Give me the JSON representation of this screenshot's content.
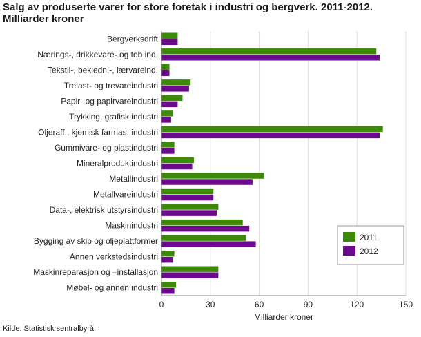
{
  "title_line1": "Salg av produserte varer for store foretak i industri og bergverk. 2011-2012.",
  "title_line2": "Milliarder kroner",
  "source": "Kilde: Statistisk sentralbyrå.",
  "colors": {
    "2011": "#3c8a07",
    "2012": "#6b0a8a",
    "grid": "#dddddd",
    "axis": "#888888"
  },
  "chart_data": {
    "type": "bar",
    "orientation": "horizontal",
    "title": "Salg av produserte varer for store foretak i industri og bergverk. 2011-2012. Milliarder kroner",
    "xlabel": "Milliarder kroner",
    "ylabel": "",
    "xlim": [
      0,
      150
    ],
    "xticks": [
      0,
      30,
      60,
      90,
      120,
      150
    ],
    "grid": true,
    "legend_position": "bottom-right",
    "categories": [
      "Bergverksdrift",
      "Nærings-, drikkevare- og tob.ind.",
      "Tekstil-, bekledn.-, lærvareind.",
      "Trelast- og trevareindustri",
      "Papir- og papirvareindustri",
      "Trykking, grafisk industri",
      "Oljeraff., kjemisk farmas. industri",
      "Gummivare- og plastindustri",
      "Mineralproduktindustri",
      "Metallindustri",
      "Metallvareindustri",
      "Data-, elektrisk utstyrsindustri",
      "Maskinindustri",
      "Bygging av skip og oljeplattformer",
      "Annen verkstedsindustri",
      "Maskinreparasjon og –installasjon",
      "Møbel- og annen industri"
    ],
    "series": [
      {
        "name": "2011",
        "values": [
          10,
          132,
          5,
          18,
          13,
          7,
          136,
          8,
          20,
          63,
          32,
          35,
          50,
          52,
          8,
          35,
          9
        ]
      },
      {
        "name": "2012",
        "values": [
          10,
          134,
          5,
          17,
          10,
          6,
          134,
          8,
          19,
          56,
          32,
          34,
          54,
          58,
          7,
          35,
          8
        ]
      }
    ]
  }
}
